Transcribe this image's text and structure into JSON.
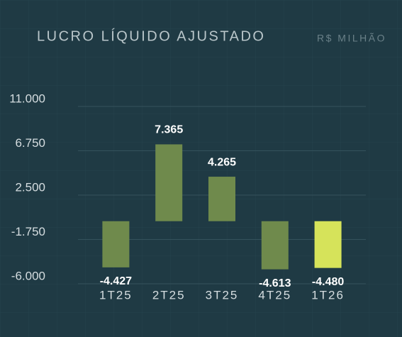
{
  "chart_data": {
    "type": "bar",
    "title": "LUCRO LÍQUIDO AJUSTADO",
    "subtitle": "R$ MILHÃO",
    "categories": [
      "1T25",
      "2T25",
      "3T25",
      "4T25",
      "1T26"
    ],
    "values": [
      -4427,
      7365,
      4265,
      -4613,
      -4480
    ],
    "value_labels": [
      "-4.427",
      "7.365",
      "4.265",
      "-4.613",
      "-4.480"
    ],
    "colors": [
      "#6f8a4c",
      "#6f8a4c",
      "#6f8a4c",
      "#6f8a4c",
      "#d6e35a"
    ],
    "ylim": [
      -6000,
      11000
    ],
    "yticks": [
      {
        "value": 11000,
        "label": "11.000"
      },
      {
        "value": 6750,
        "label": "6.750"
      },
      {
        "value": 2500,
        "label": "2.500"
      },
      {
        "value": -1750,
        "label": "-1.750"
      },
      {
        "value": -6000,
        "label": "-6.000"
      }
    ],
    "grid": true
  }
}
